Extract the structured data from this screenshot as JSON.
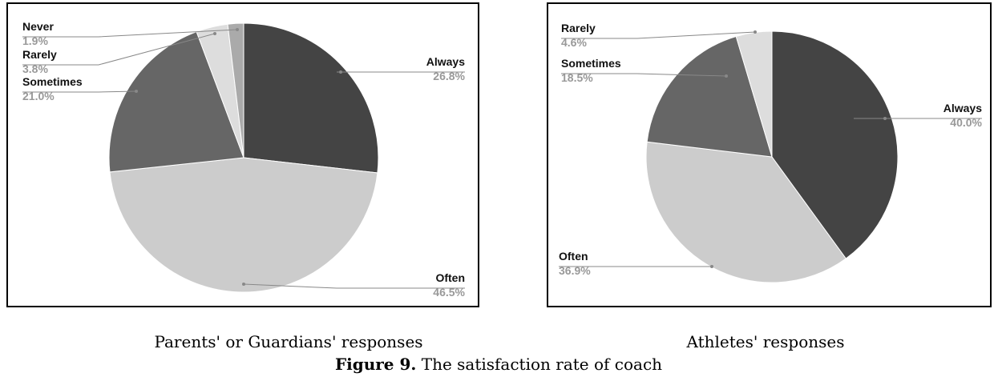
{
  "chart_data": [
    {
      "type": "pie",
      "title": "Parents' or Guardians' responses",
      "categories": [
        "Always",
        "Often",
        "Sometimes",
        "Rarely",
        "Never"
      ],
      "values": [
        26.8,
        46.5,
        21.0,
        3.8,
        1.9
      ],
      "value_labels": [
        "26.8%",
        "46.5%",
        "21.0%",
        "3.8%",
        "1.9%"
      ],
      "colors": [
        "#444444",
        "#cccccc",
        "#666666",
        "#dddddd",
        "#aaaaaa"
      ]
    },
    {
      "type": "pie",
      "title": "Athletes' responses",
      "categories": [
        "Always",
        "Often",
        "Sometimes",
        "Rarely"
      ],
      "values": [
        40.0,
        36.9,
        18.5,
        4.6
      ],
      "value_labels": [
        "40.0%",
        "36.9%",
        "18.5%",
        "4.6%"
      ],
      "colors": [
        "#444444",
        "#cccccc",
        "#666666",
        "#dddddd"
      ]
    }
  ],
  "caption": {
    "label": "Figure 9.",
    "text": "The satisfaction rate of coach"
  }
}
